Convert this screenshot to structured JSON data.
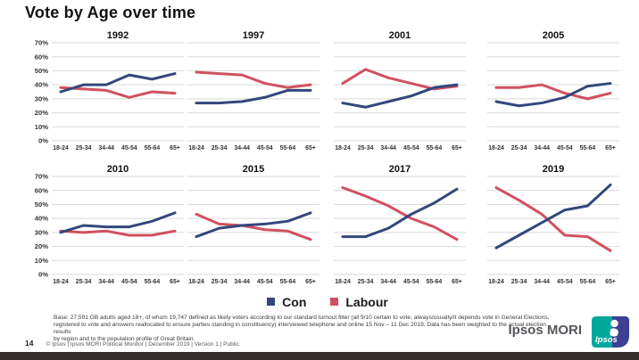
{
  "title": "Vote by Age over time",
  "colors": {
    "con": "#33477b",
    "labour": "#d05160",
    "gridline": "#d9d9d9",
    "axis_text": "#333333",
    "teal_logo": "#00a79b",
    "blue_logo": "#3e3f95",
    "bottom_strip": "#342c2d"
  },
  "legend": {
    "con": "Con",
    "labour": "Labour"
  },
  "chart_data": {
    "type": "line",
    "categories": [
      "18-24",
      "25-34",
      "34-44",
      "45-54",
      "55-64",
      "65+"
    ],
    "ylim": [
      0,
      70
    ],
    "yticks": [
      "70%",
      "60%",
      "50%",
      "40%",
      "30%",
      "20%",
      "10%",
      "0%"
    ],
    "grid": true,
    "legend_position": "bottom-center",
    "charts": [
      {
        "title": "1992",
        "series": [
          {
            "name": "Con",
            "values": [
              35,
              40,
              40,
              47,
              44,
              48
            ]
          },
          {
            "name": "Labour",
            "values": [
              38,
              37,
              36,
              31,
              35,
              34
            ]
          }
        ]
      },
      {
        "title": "1997",
        "series": [
          {
            "name": "Con",
            "values": [
              27,
              27,
              28,
              31,
              36,
              36
            ]
          },
          {
            "name": "Labour",
            "values": [
              49,
              48,
              47,
              41,
              38,
              40
            ]
          }
        ]
      },
      {
        "title": "2001",
        "series": [
          {
            "name": "Con",
            "values": [
              27,
              24,
              28,
              32,
              38,
              40
            ]
          },
          {
            "name": "Labour",
            "values": [
              41,
              51,
              45,
              41,
              37,
              39
            ]
          }
        ]
      },
      {
        "title": "2005",
        "series": [
          {
            "name": "Con",
            "values": [
              28,
              25,
              27,
              31,
              39,
              41
            ]
          },
          {
            "name": "Labour",
            "values": [
              38,
              38,
              40,
              34,
              30,
              34
            ]
          }
        ]
      },
      {
        "title": "2010",
        "series": [
          {
            "name": "Con",
            "values": [
              30,
              35,
              34,
              34,
              38,
              44
            ]
          },
          {
            "name": "Labour",
            "values": [
              31,
              30,
              31,
              28,
              28,
              31
            ]
          }
        ]
      },
      {
        "title": "2015",
        "series": [
          {
            "name": "Con",
            "values": [
              27,
              33,
              35,
              36,
              38,
              44
            ]
          },
          {
            "name": "Labour",
            "values": [
              43,
              36,
              35,
              32,
              31,
              25
            ]
          }
        ]
      },
      {
        "title": "2017",
        "series": [
          {
            "name": "Con",
            "values": [
              27,
              27,
              33,
              43,
              51,
              61
            ]
          },
          {
            "name": "Labour",
            "values": [
              62,
              56,
              49,
              40,
              34,
              25
            ]
          }
        ]
      },
      {
        "title": "2019",
        "series": [
          {
            "name": "Con",
            "values": [
              19,
              28,
              37,
              46,
              49,
              64
            ]
          },
          {
            "name": "Labour",
            "values": [
              62,
              53,
              43,
              28,
              27,
              17
            ]
          }
        ]
      }
    ]
  },
  "footer": {
    "line1": "Base: 27,591 GB adults aged 18+, of whom 19,747 defined as likely voters according to our standard turnout filter (all  9/10 certain to vote,  always/usually/it depends vote in General Elections,",
    "line2": "registered to vote and answers reallocated to ensure parties standing in constituency) interviewed telephone and online 15 Nov – 11 Dec 2019. Data has been weighted to the actual election results",
    "line3": "by region and to the population profile of Great Britain."
  },
  "meta": {
    "page_number": "14",
    "copyright": "© Ipsos | Ipsos MORI  Political  Monitor | December 2019 | Version 1 | Public."
  },
  "branding": {
    "company": "Ipsos MORI",
    "logo_text": "Ipsos"
  }
}
